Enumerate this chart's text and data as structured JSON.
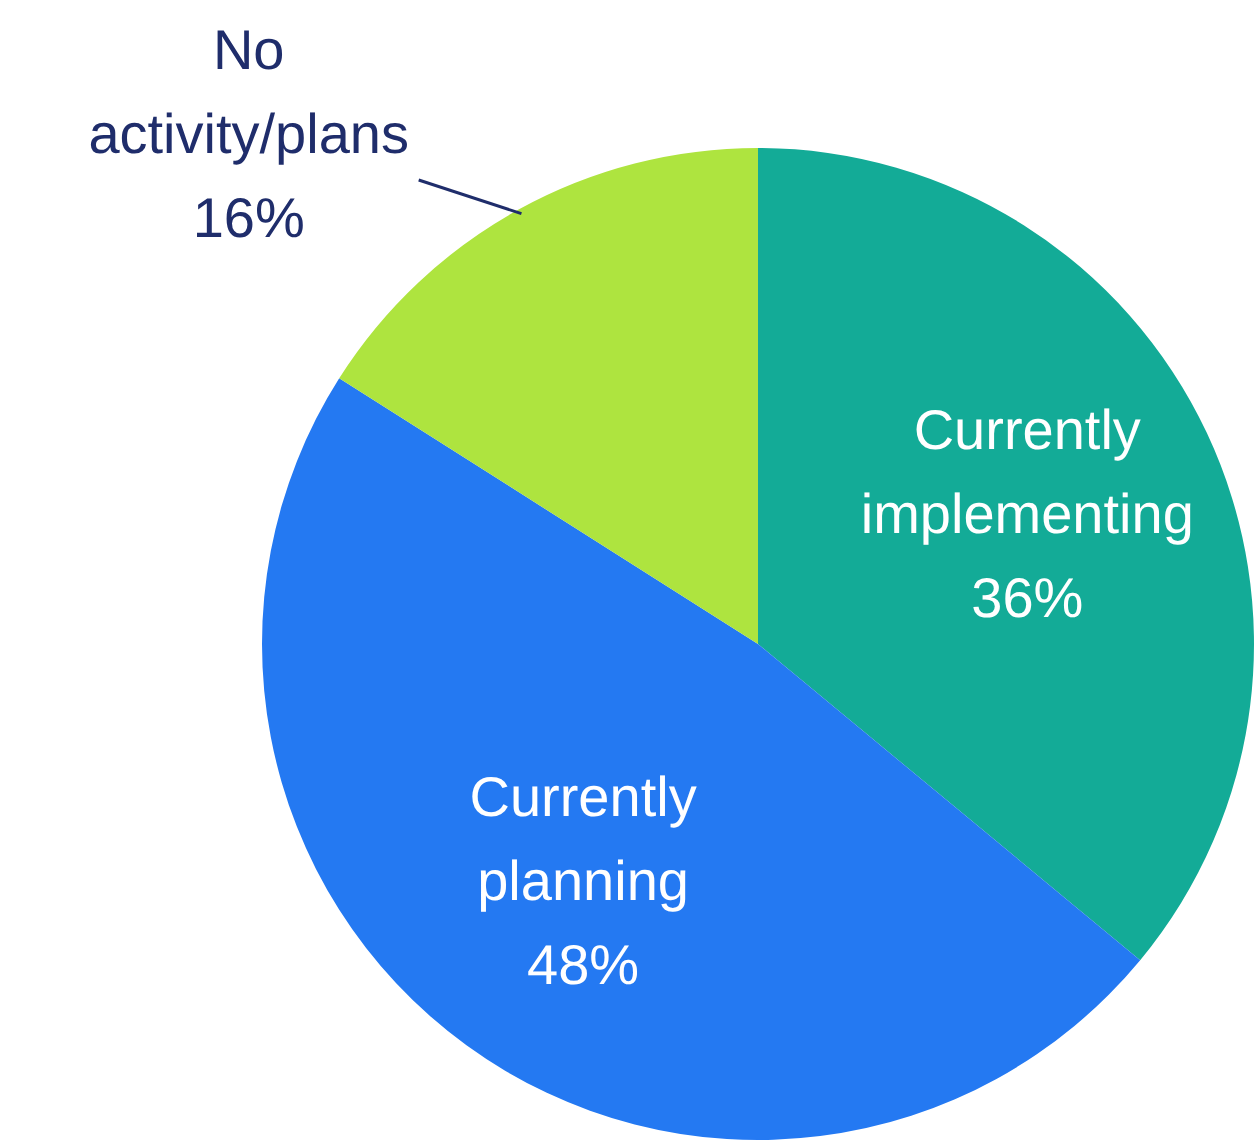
{
  "chart_data": {
    "type": "pie",
    "categories": [
      "Currently implementing",
      "Currently planning",
      "No activity/plans"
    ],
    "values": [
      36,
      48,
      16
    ],
    "colors": [
      "#13ab97",
      "#2479f2",
      "#aee43f"
    ],
    "value_labels": [
      "36%",
      "48%",
      "16%"
    ],
    "legend": false
  }
}
